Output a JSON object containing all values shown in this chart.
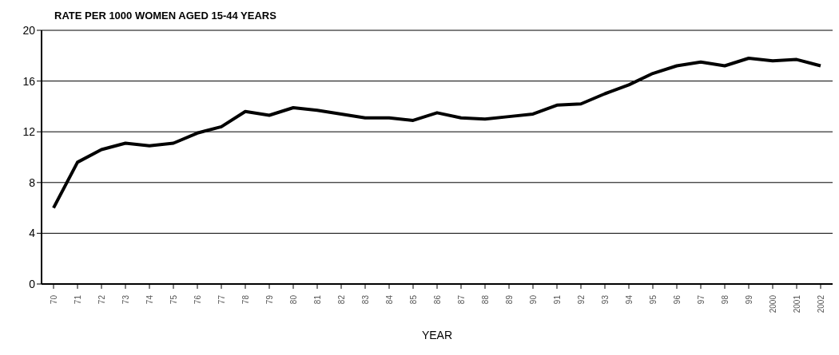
{
  "chart_data": {
    "type": "line",
    "title": "RATE PER 1000 WOMEN AGED 15-44 YEARS",
    "xlabel": "YEAR",
    "categories": [
      "70",
      "71",
      "72",
      "73",
      "74",
      "75",
      "76",
      "77",
      "78",
      "79",
      "80",
      "81",
      "82",
      "83",
      "84",
      "85",
      "86",
      "87",
      "88",
      "89",
      "90",
      "91",
      "92",
      "93",
      "94",
      "95",
      "96",
      "97",
      "98",
      "99",
      "2000",
      "2001",
      "2002"
    ],
    "series": [
      {
        "color": "#000000",
        "values": [
          6.0,
          9.6,
          10.6,
          11.1,
          10.9,
          11.1,
          11.9,
          12.4,
          13.6,
          13.3,
          13.9,
          13.7,
          13.4,
          13.1,
          13.1,
          12.9,
          13.5,
          13.1,
          13.0,
          13.2,
          13.4,
          14.1,
          14.2,
          15.0,
          15.7,
          16.6,
          17.2,
          17.5,
          17.2,
          17.8,
          17.6,
          17.7,
          17.2
        ]
      }
    ],
    "ylim": [
      0,
      20
    ],
    "yticks": [
      0,
      4,
      8,
      12,
      16,
      20
    ],
    "grid": "y",
    "marker": "none",
    "line_style": "solid"
  }
}
